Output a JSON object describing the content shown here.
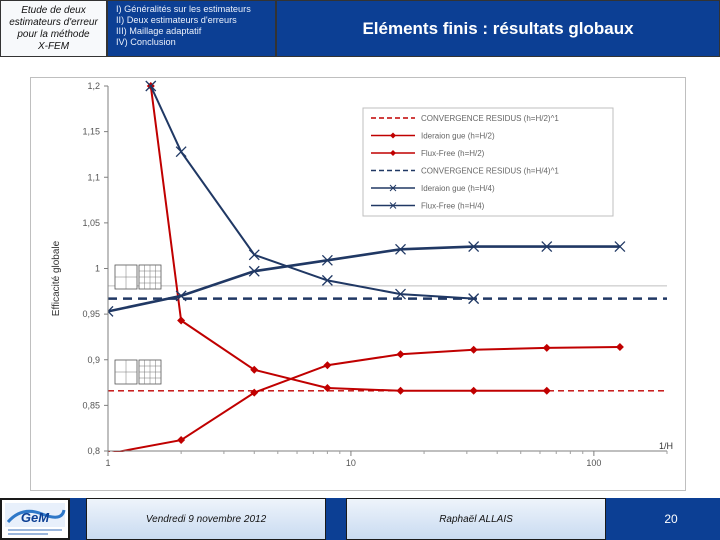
{
  "header": {
    "left_title": "Etude de deux\nestimateurs d'erreur\npour la méthode\nX-FEM",
    "outline": [
      "I) Généralités sur les estimateurs",
      "II) Deux estimateurs d'erreurs",
      "III) Maillage adaptatif",
      "IV) Conclusion"
    ],
    "slide_title": "Eléments finis : résultats globaux"
  },
  "footer": {
    "date": "Vendredi 9 novembre 2012",
    "author": "Raphaël ALLAIS",
    "page": "20",
    "logo_text": "GeM"
  },
  "colors": {
    "header_blue": "#0c3f94",
    "red_series": "#c00000",
    "blue_series": "#203864"
  },
  "chart_data": {
    "type": "line",
    "x_scale": "log",
    "xlim": [
      1,
      200
    ],
    "ylim": [
      0.8,
      1.2
    ],
    "ylabel": "Efficacité globale",
    "xlabel": "1/H",
    "x_ticks": [
      {
        "value": 1,
        "label": "1"
      },
      {
        "value": 10,
        "label": "10"
      },
      {
        "value": 100,
        "label": "100"
      }
    ],
    "y_ticks": [
      {
        "value": 0.8,
        "label": "0,8"
      },
      {
        "value": 0.85,
        "label": "0,85"
      },
      {
        "value": 0.9,
        "label": "0,9"
      },
      {
        "value": 0.95,
        "label": "0,95"
      },
      {
        "value": 1,
        "label": "1"
      },
      {
        "value": 1.05,
        "label": "1,05"
      },
      {
        "value": 1.1,
        "label": "1,1"
      },
      {
        "value": 1.15,
        "label": "1,15"
      },
      {
        "value": 1.2,
        "label": "1,2"
      }
    ],
    "reference_line": 0.981,
    "legend_position": "top-right",
    "series": [
      {
        "name": "CONVERGENCE RESIDUS (h=H/2)^1",
        "kind": "dashed",
        "color": "#c00000",
        "level": 0.866
      },
      {
        "name": "Ideraion gue (h=H/2)",
        "kind": "line",
        "color": "#c00000",
        "marker": "diamond",
        "x": [
          1.5,
          2,
          4,
          8,
          16,
          32,
          64
        ],
        "y": [
          1.2,
          0.943,
          0.889,
          0.869,
          0.866,
          0.866,
          0.866
        ]
      },
      {
        "name": "Flux-Free (h=H/2)",
        "kind": "line",
        "color": "#c00000",
        "marker": "diamond",
        "x": [
          1,
          2,
          4,
          8,
          16,
          32,
          64,
          128
        ],
        "y": [
          0.797,
          0.812,
          0.864,
          0.894,
          0.906,
          0.911,
          0.913,
          0.914
        ]
      },
      {
        "name": "CONVERGENCE RESIDUS (h=H/4)^1",
        "kind": "dashed",
        "color": "#203864",
        "level": 0.967
      },
      {
        "name": "Ideraion gue (h=H/4)",
        "kind": "line",
        "color": "#203864",
        "marker": "x",
        "x": [
          1.5,
          2,
          4,
          8,
          16,
          32
        ],
        "y": [
          1.2,
          1.128,
          1.015,
          0.987,
          0.972,
          0.967
        ]
      },
      {
        "name": "Flux-Free (h=H/4)",
        "kind": "line",
        "color": "#203864",
        "marker": "x",
        "x": [
          1,
          2,
          4,
          8,
          16,
          32,
          64,
          128
        ],
        "y": [
          0.953,
          0.97,
          0.997,
          1.009,
          1.021,
          1.024,
          1.024,
          1.024
        ]
      }
    ]
  }
}
